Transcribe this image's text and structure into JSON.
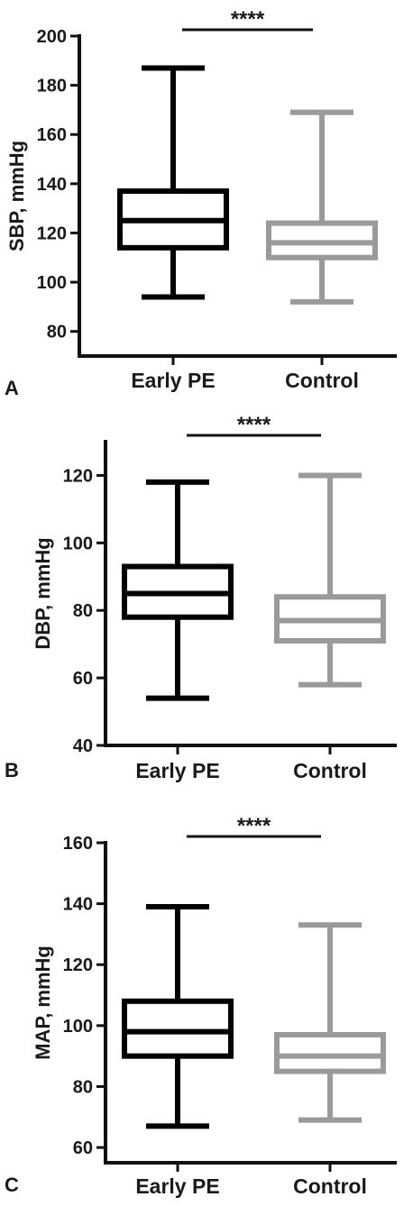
{
  "chart_data": [
    {
      "type": "box",
      "panel_label": "A",
      "ylabel": "SBP, mmHg",
      "ylim": [
        70,
        200
      ],
      "yticks": [
        80,
        100,
        120,
        140,
        160,
        180,
        200
      ],
      "categories": [
        "Early PE",
        "Control"
      ],
      "boxes": [
        {
          "category": "Early PE",
          "min": 94,
          "q1": 114,
          "median": 125,
          "q3": 137,
          "max": 187,
          "color": "#000000"
        },
        {
          "category": "Control",
          "min": 92,
          "q1": 110,
          "median": 116,
          "q3": 124,
          "max": 169,
          "color": "#9a9a9a"
        }
      ],
      "significance": "****"
    },
    {
      "type": "box",
      "panel_label": "B",
      "ylabel": "DBP, mmHg",
      "ylim": [
        40,
        130
      ],
      "yticks": [
        40,
        60,
        80,
        100,
        120
      ],
      "categories": [
        "Early PE",
        "Control"
      ],
      "boxes": [
        {
          "category": "Early PE",
          "min": 54,
          "q1": 78,
          "median": 85,
          "q3": 93,
          "max": 118,
          "color": "#000000"
        },
        {
          "category": "Control",
          "min": 58,
          "q1": 71,
          "median": 77,
          "q3": 84,
          "max": 120,
          "color": "#9a9a9a"
        }
      ],
      "significance": "****"
    },
    {
      "type": "box",
      "panel_label": "C",
      "ylabel": "MAP, mmHg",
      "ylim": [
        55,
        160
      ],
      "yticks": [
        60,
        80,
        100,
        120,
        140,
        160
      ],
      "categories": [
        "Early PE",
        "Control"
      ],
      "boxes": [
        {
          "category": "Early PE",
          "min": 67,
          "q1": 90,
          "median": 98,
          "q3": 108,
          "max": 139,
          "color": "#000000"
        },
        {
          "category": "Control",
          "min": 69,
          "q1": 85,
          "median": 90,
          "q3": 97,
          "max": 133,
          "color": "#9a9a9a"
        }
      ],
      "significance": "****"
    }
  ]
}
